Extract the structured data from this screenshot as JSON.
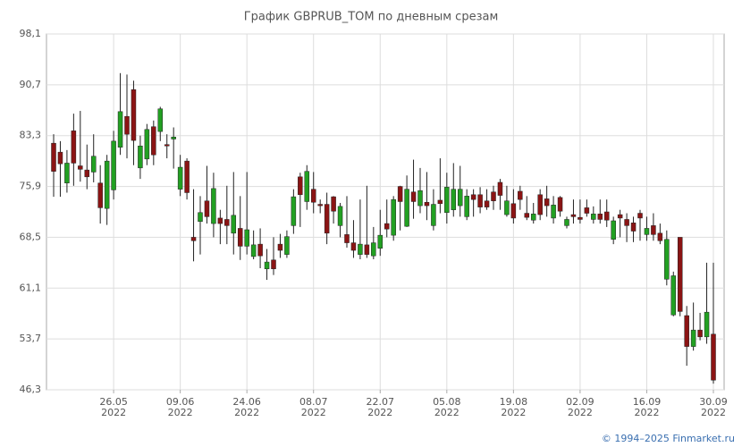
{
  "chart_data": {
    "type": "candlestick",
    "title": "График GBPRUB_TOM по дневным срезам",
    "footer": "© 1994–2025 Finmarket.ru",
    "up_color": "#22a022",
    "down_color": "#8b1414",
    "grid": true,
    "ylim": [
      46.3,
      98.1
    ],
    "yticks": [
      {
        "value": 46.3,
        "label": "46,3"
      },
      {
        "value": 53.7,
        "label": "53,7"
      },
      {
        "value": 61.1,
        "label": "61,1"
      },
      {
        "value": 68.5,
        "label": "68,5"
      },
      {
        "value": 75.9,
        "label": "75,9"
      },
      {
        "value": 83.3,
        "label": "83,3"
      },
      {
        "value": 90.7,
        "label": "90,7"
      },
      {
        "value": 98.1,
        "label": "98,1"
      }
    ],
    "categories": [
      null,
      null,
      null,
      null,
      null,
      null,
      null,
      null,
      null,
      [
        "26.05",
        "2022"
      ],
      null,
      null,
      null,
      null,
      null,
      null,
      null,
      null,
      null,
      [
        "09.06",
        "2022"
      ],
      null,
      null,
      null,
      null,
      null,
      null,
      null,
      null,
      null,
      [
        "24.06",
        "2022"
      ],
      null,
      null,
      null,
      null,
      null,
      null,
      null,
      null,
      null,
      [
        "08.07",
        "2022"
      ],
      null,
      null,
      null,
      null,
      null,
      null,
      null,
      null,
      null,
      [
        "22.07",
        "2022"
      ],
      null,
      null,
      null,
      null,
      null,
      null,
      null,
      null,
      null,
      [
        "05.08",
        "2022"
      ],
      null,
      null,
      null,
      null,
      null,
      null,
      null,
      null,
      null,
      [
        "19.08",
        "2022"
      ],
      null,
      null,
      null,
      null,
      null,
      null,
      null,
      null,
      null,
      [
        "02.09",
        "2022"
      ],
      null,
      null,
      null,
      null,
      null,
      null,
      null,
      null,
      null,
      [
        "16.09",
        "2022"
      ],
      null,
      null,
      null,
      null,
      null,
      null,
      null,
      null,
      null,
      [
        "30.09",
        "2022"
      ]
    ],
    "open": [
      82.2,
      80.9,
      76.4,
      84.0,
      78.9,
      78.3,
      78.0,
      76.4,
      72.7,
      75.4,
      81.6,
      86.1,
      90.0,
      78.6,
      79.9,
      84.6,
      83.9,
      82.0,
      82.8,
      75.5,
      79.6,
      68.5,
      70.8,
      73.8,
      70.5,
      71.3,
      71.1,
      69.1,
      69.8,
      67.2,
      65.7,
      67.5,
      63.9,
      65.2,
      67.5,
      66.0,
      70.2,
      77.3,
      73.7,
      75.5,
      73.3,
      73.3,
      74.4,
      70.2,
      68.9,
      67.7,
      66.0,
      67.4,
      65.8,
      66.9,
      70.5,
      68.8,
      75.9,
      70.1,
      75.1,
      73.1,
      73.6,
      70.2,
      73.9,
      72.1,
      72.5,
      73.1,
      71.5,
      74.7,
      74.7,
      73.8,
      75.1,
      76.5,
      71.8,
      73.4,
      75.2,
      72.0,
      71.0,
      74.7,
      74.1,
      71.3,
      74.3,
      70.2,
      71.8,
      71.4,
      72.8,
      71.1,
      71.9,
      72.2,
      68.2,
      71.8,
      71.1,
      70.6,
      72.0,
      68.9,
      70.2,
      69.1,
      62.4,
      57.2,
      68.5,
      57.1,
      52.6,
      55.0,
      54.0,
      54.4
    ],
    "high": [
      83.5,
      82.5,
      81.2,
      86.5,
      86.9,
      82.0,
      83.5,
      79.0,
      80.5,
      84.0,
      92.4,
      92.2,
      91.3,
      83.3,
      85.0,
      85.5,
      87.5,
      83.5,
      84.5,
      80.5,
      80.0,
      75.5,
      74.5,
      78.9,
      77.9,
      72.5,
      76.0,
      78.0,
      74.5,
      78.0,
      69.5,
      69.8,
      66.8,
      68.5,
      69.0,
      69.5,
      75.5,
      77.9,
      79.0,
      78.0,
      74.0,
      75.0,
      74.5,
      73.5,
      74.5,
      71.0,
      74.0,
      76.0,
      70.0,
      72.5,
      74.0,
      74.5,
      76.0,
      77.5,
      79.8,
      78.6,
      78.0,
      75.5,
      80.0,
      77.9,
      79.3,
      78.9,
      75.5,
      75.5,
      75.8,
      75.5,
      76.0,
      77.0,
      76.0,
      75.5,
      76.0,
      74.5,
      73.5,
      75.5,
      76.0,
      74.5,
      74.5,
      71.5,
      74.0,
      74.0,
      74.0,
      73.0,
      74.0,
      74.0,
      71.5,
      72.5,
      72.0,
      71.5,
      72.5,
      71.5,
      72.0,
      70.5,
      69.5,
      63.5,
      68.5,
      58.5,
      59.0,
      57.5,
      64.8,
      64.8
    ],
    "low": [
      74.4,
      74.4,
      75.0,
      76.0,
      76.6,
      75.5,
      76.5,
      70.5,
      70.3,
      74.0,
      80.5,
      80.0,
      79.0,
      77.0,
      79.0,
      79.0,
      82.5,
      80.0,
      78.5,
      74.5,
      74.0,
      65.0,
      66.0,
      70.5,
      68.5,
      67.5,
      67.5,
      66.0,
      65.2,
      66.0,
      65.3,
      64.0,
      62.3,
      63.0,
      65.5,
      65.5,
      69.0,
      70.0,
      72.5,
      72.0,
      72.0,
      67.5,
      70.5,
      68.5,
      67.0,
      65.5,
      65.3,
      65.5,
      65.3,
      65.8,
      68.5,
      68.0,
      69.5,
      70.0,
      71.2,
      72.0,
      71.0,
      69.5,
      72.0,
      70.5,
      71.5,
      71.5,
      71.0,
      71.5,
      72.0,
      72.5,
      72.5,
      72.5,
      71.5,
      70.5,
      72.5,
      71.0,
      70.5,
      71.0,
      71.5,
      70.5,
      71.5,
      69.8,
      70.5,
      70.5,
      71.5,
      70.5,
      70.5,
      70.0,
      67.5,
      68.5,
      67.8,
      67.8,
      68.0,
      68.0,
      68.0,
      67.5,
      61.5,
      57.0,
      57.0,
      49.8,
      52.0,
      53.5,
      53.0,
      47.2
    ],
    "close": [
      78.1,
      79.2,
      79.3,
      79.3,
      78.4,
      77.3,
      80.3,
      72.8,
      79.6,
      82.5,
      86.8,
      83.5,
      82.6,
      81.8,
      84.2,
      80.5,
      87.2,
      81.8,
      83.1,
      78.7,
      75.0,
      68.0,
      72.1,
      71.5,
      75.6,
      70.5,
      70.2,
      71.7,
      67.2,
      69.6,
      67.4,
      65.8,
      64.9,
      63.9,
      66.6,
      68.6,
      74.4,
      74.7,
      78.1,
      73.6,
      73.1,
      69.1,
      72.3,
      73.0,
      67.7,
      66.6,
      67.5,
      66.0,
      67.7,
      68.8,
      69.7,
      74.0,
      73.7,
      75.5,
      73.7,
      75.3,
      73.1,
      73.3,
      73.4,
      75.8,
      75.5,
      75.5,
      74.5,
      74.0,
      72.9,
      72.9,
      73.8,
      74.6,
      73.8,
      71.3,
      74.0,
      71.4,
      71.9,
      71.8,
      73.1,
      73.2,
      72.3,
      71.1,
      71.5,
      71.1,
      72.0,
      71.9,
      71.1,
      71.0,
      70.9,
      71.3,
      70.2,
      69.4,
      71.3,
      69.8,
      68.9,
      68.0,
      68.2,
      62.9,
      57.7,
      52.6,
      55.0,
      54.0,
      57.6,
      47.7
    ]
  }
}
